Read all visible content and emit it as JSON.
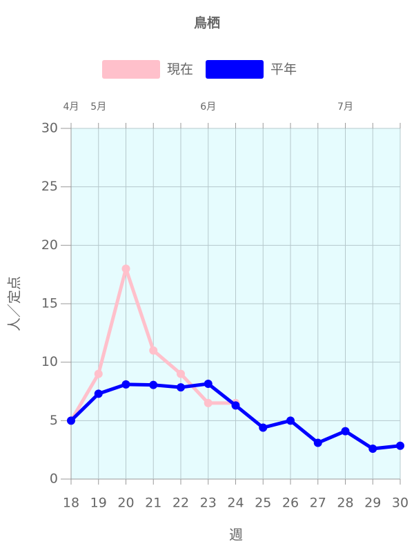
{
  "chart_data": {
    "type": "line",
    "title": "鳥栖",
    "x_label": "週",
    "y_label": "人／定点",
    "categories": [
      18,
      19,
      20,
      21,
      22,
      23,
      24,
      25,
      26,
      27,
      28,
      29,
      30
    ],
    "series": [
      {
        "name": "現在",
        "color": "#ffc0cb",
        "values": [
          5,
          9,
          18,
          11,
          9,
          6.5,
          6.5,
          null,
          null,
          null,
          null,
          null,
          null
        ]
      },
      {
        "name": "平年",
        "color": "#0000ff",
        "values": [
          5,
          7.3,
          8.1,
          8.05,
          7.85,
          8.15,
          6.3,
          4.4,
          5.0,
          3.1,
          4.1,
          2.6,
          2.85
        ]
      }
    ],
    "month_labels": [
      {
        "label": "4月",
        "week": 18
      },
      {
        "label": "5月",
        "week": 19
      },
      {
        "label": "6月",
        "week": 23
      },
      {
        "label": "7月",
        "week": 28
      }
    ],
    "ylim": [
      0,
      30
    ],
    "yticks": [
      0,
      5,
      10,
      15,
      20,
      25,
      30
    ],
    "grid": true,
    "legend": "top"
  }
}
